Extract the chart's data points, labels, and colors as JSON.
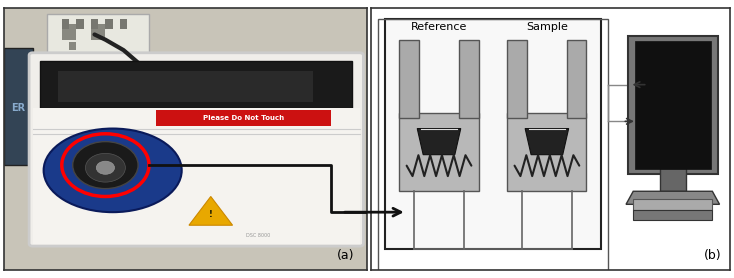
{
  "fig_width": 7.34,
  "fig_height": 2.78,
  "dpi": 100,
  "background_color": "#ffffff",
  "label_a": "(a)",
  "label_b": "(b)",
  "ref_label": "Reference",
  "sample_label": "Sample"
}
